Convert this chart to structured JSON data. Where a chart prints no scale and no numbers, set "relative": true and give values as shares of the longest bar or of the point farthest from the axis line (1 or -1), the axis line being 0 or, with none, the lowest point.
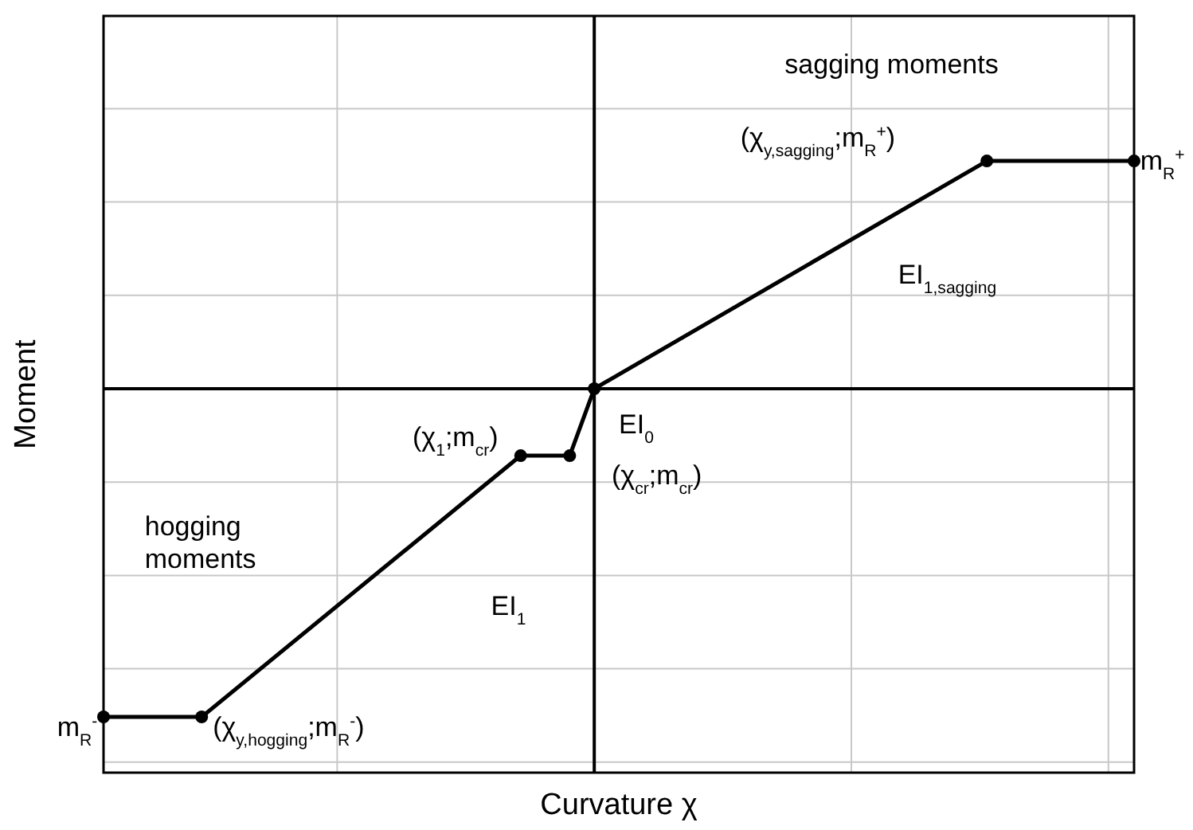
{
  "chart_data": {
    "type": "line",
    "relative": true,
    "xlabel": "Curvature χ",
    "ylabel": "Moment",
    "categories": [
      null,
      null,
      null,
      null,
      null,
      null,
      null,
      null,
      null,
      null,
      null,
      null,
      null,
      null,
      null,
      null,
      null,
      null,
      null,
      null,
      null,
      null,
      null,
      null,
      null,
      null,
      null,
      null,
      null,
      null,
      null,
      null,
      null,
      null,
      null,
      null,
      null,
      null,
      null,
      null,
      null,
      null,
      null
    ],
    "series": [
      {
        "color": "#000000",
        "values": [
          -1,
          null,
          null,
          null,
          -1,
          null,
          null,
          null,
          null,
          null,
          null,
          null,
          null,
          null,
          null,
          null,
          null,
          -0.204,
          null,
          -0.204,
          0,
          null,
          null,
          null,
          null,
          null,
          null,
          null,
          null,
          null,
          null,
          null,
          null,
          null,
          null,
          null,
          0.694,
          null,
          null,
          null,
          null,
          null,
          0.694
        ]
      }
    ],
    "grid": true,
    "marker": "circle",
    "line_style": "solid",
    "annotations": [
      "sagging moments",
      "(χ$_{y,sagging}$;m$_{R}$$^{+}$)",
      "m$_{R}$$^{+}$",
      "EI$_{1,sagging}$",
      "EI$_{0}$",
      "(χ$_{1}$;m$_{cr}$)",
      "(χ$_{cr}$;m$_{cr}$)",
      "hogging\nmoments",
      "EI$_{1}$",
      "(χ$_{y,hogging}$;m$_{R}$$^{-}$)",
      "m$_{R}$$^{-}$"
    ]
  }
}
